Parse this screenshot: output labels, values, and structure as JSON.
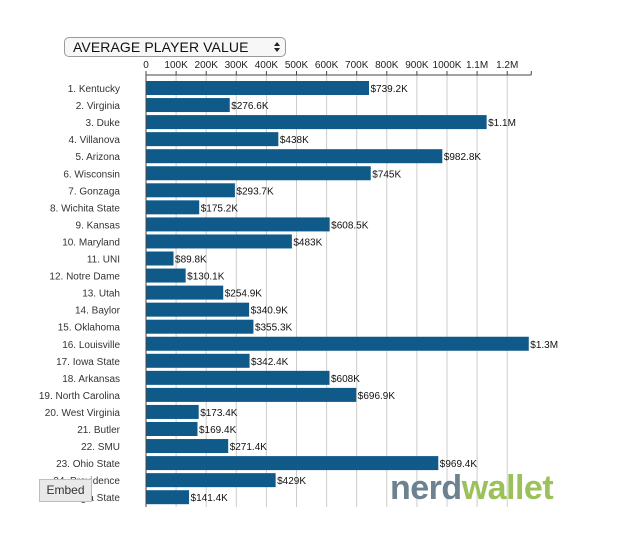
{
  "dropdown": {
    "selected": "AVERAGE PLAYER VALUE",
    "icon": "updown-arrows-icon"
  },
  "embed_label": "Embed",
  "logo": {
    "part1": "nerd",
    "part2": "wallet"
  },
  "colors": {
    "bar": "#0f5a88",
    "axis": "#444444",
    "grid": "#cccccc"
  },
  "chart_data": {
    "type": "bar",
    "orientation": "horizontal",
    "title": "",
    "xlabel": "",
    "ylabel": "",
    "xlim": [
      0,
      1280000
    ],
    "x_ticks": [
      {
        "v": 0,
        "label": "0"
      },
      {
        "v": 100000,
        "label": "100K"
      },
      {
        "v": 200000,
        "label": "200K"
      },
      {
        "v": 300000,
        "label": "300K"
      },
      {
        "v": 400000,
        "label": "400K"
      },
      {
        "v": 500000,
        "label": "500K"
      },
      {
        "v": 600000,
        "label": "600K"
      },
      {
        "v": 700000,
        "label": "700K"
      },
      {
        "v": 800000,
        "label": "800K"
      },
      {
        "v": 900000,
        "label": "900K"
      },
      {
        "v": 1000000,
        "label": "1000K"
      },
      {
        "v": 1100000,
        "label": "1.1M"
      },
      {
        "v": 1200000,
        "label": "1.2M"
      }
    ],
    "grid": true,
    "categories": [
      "1. Kentucky",
      "2. Virginia",
      "3. Duke",
      "4. Villanova",
      "5. Arizona",
      "6. Wisconsin",
      "7. Gonzaga",
      "8. Wichita State",
      "9. Kansas",
      "10. Maryland",
      "11. UNI",
      "12. Notre Dame",
      "13. Utah",
      "14. Baylor",
      "15. Oklahoma",
      "16. Louisville",
      "17. Iowa State",
      "18. Arkansas",
      "19. North Carolina",
      "20. West Virginia",
      "21. Butler",
      "22. SMU",
      "23. Ohio State",
      "24. Providence",
      "25. Georgia State"
    ],
    "values": [
      739200,
      276600,
      1130000,
      438000,
      982800,
      745000,
      293700,
      175200,
      608500,
      483000,
      89800,
      130100,
      254900,
      340900,
      355300,
      1270000,
      342400,
      608000,
      696900,
      173400,
      169400,
      271400,
      969400,
      429000,
      141400
    ],
    "value_labels": [
      "$739.2K",
      "$276.6K",
      "$1.1M",
      "$438K",
      "$982.8K",
      "$745K",
      "$293.7K",
      "$175.2K",
      "$608.5K",
      "$483K",
      "$89.8K",
      "$130.1K",
      "$254.9K",
      "$340.9K",
      "$355.3K",
      "$1.3M",
      "$342.4K",
      "$608K",
      "$696.9K",
      "$173.4K",
      "$169.4K",
      "$271.4K",
      "$969.4K",
      "$429K",
      "$141.4K"
    ]
  }
}
